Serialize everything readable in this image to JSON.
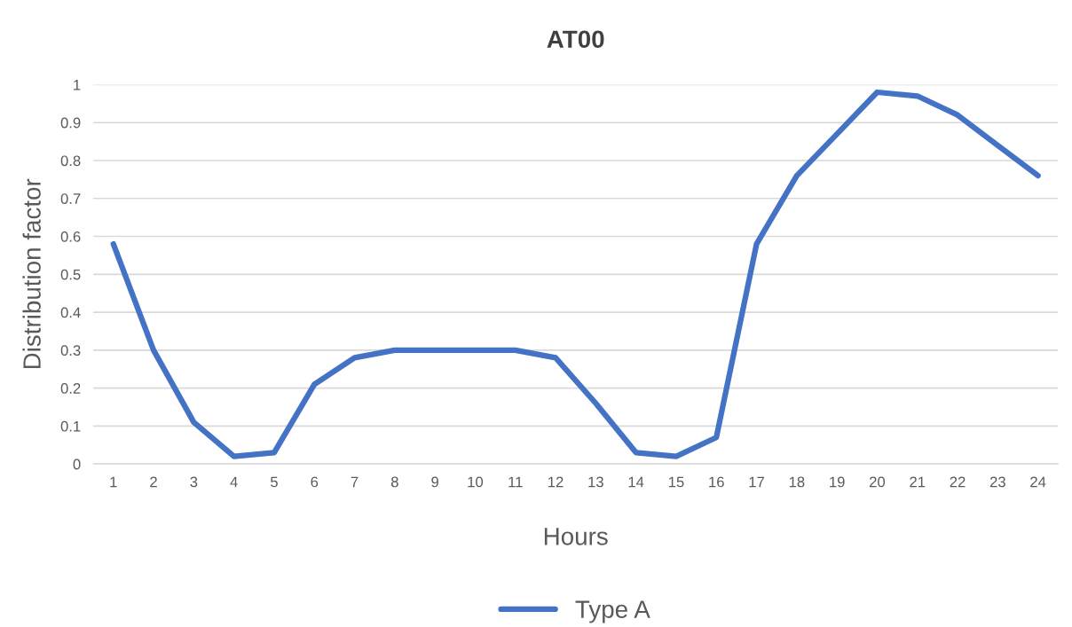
{
  "chart_data": {
    "type": "line",
    "title": "AT00",
    "xlabel": "Hours",
    "ylabel": "Distribution factor",
    "categories": [
      "1",
      "2",
      "3",
      "4",
      "5",
      "6",
      "7",
      "8",
      "9",
      "10",
      "11",
      "12",
      "13",
      "14",
      "15",
      "16",
      "17",
      "18",
      "19",
      "20",
      "21",
      "22",
      "23",
      "24"
    ],
    "series": [
      {
        "name": "Type A",
        "color": "#4472c4",
        "values": [
          0.58,
          0.3,
          0.11,
          0.02,
          0.03,
          0.21,
          0.28,
          0.3,
          0.3,
          0.3,
          0.3,
          0.28,
          0.16,
          0.03,
          0.02,
          0.07,
          0.58,
          0.76,
          0.87,
          0.98,
          0.97,
          0.92,
          0.84,
          0.76
        ]
      }
    ],
    "ylim": [
      0,
      1
    ],
    "yticks": [
      0,
      0.1,
      0.2,
      0.3,
      0.4,
      0.5,
      0.6,
      0.7,
      0.8,
      0.9,
      1
    ],
    "grid": "y",
    "legend": "bottom",
    "marker": "none",
    "line_style": "solid"
  }
}
